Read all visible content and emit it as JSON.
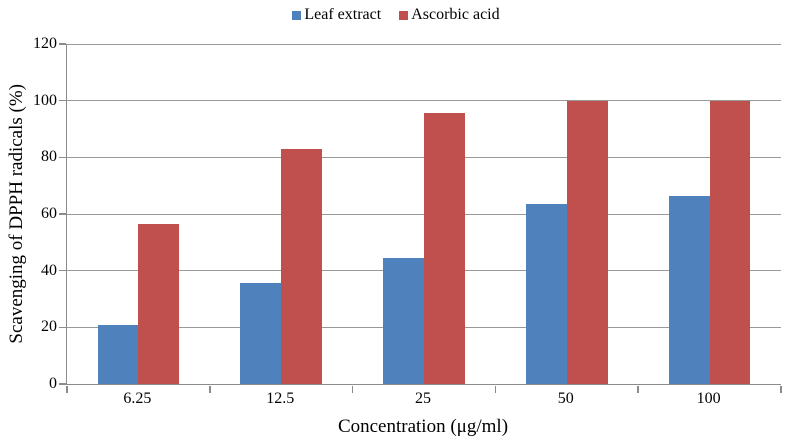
{
  "chart_data": {
    "type": "bar",
    "categories": [
      "6.25",
      "12.5",
      "25",
      "50",
      "100"
    ],
    "series": [
      {
        "name": "Leaf extract",
        "color": "#4F81BD",
        "values": [
          21,
          35.5,
          44.5,
          63.5,
          66.5
        ]
      },
      {
        "name": "Ascorbic acid",
        "color": "#C0504D",
        "values": [
          56.5,
          83,
          95.5,
          100,
          100
        ]
      }
    ],
    "xlabel": "Concentration (μg/ml)",
    "ylabel": "Scavenging of DPPH radicals (%)",
    "ylim": [
      0,
      120
    ],
    "yticks": [
      0,
      20,
      40,
      60,
      80,
      100,
      120
    ],
    "grid": "horizontal-gridlines",
    "legend_position": "top-center",
    "colors": {
      "bar_blue": "#4F81BD",
      "bar_red": "#C0504D",
      "axis": "#8C8C8C",
      "gridline": "#999999",
      "text": "#000000",
      "background": "#FFFFFF"
    }
  }
}
